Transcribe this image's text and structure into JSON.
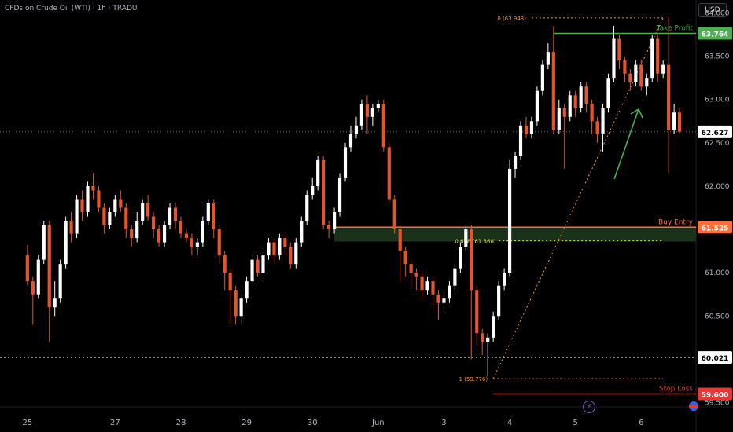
{
  "header": {
    "symbol_title": "CFDs on Crude Oil (WTI) · 1h · TRADU",
    "currency_button": "USD"
  },
  "colors": {
    "up_candle": "#ffffff",
    "down_candle": "#e4552e",
    "take_profit": "#4caf50",
    "buy_entry": "#ff6d3a",
    "stop_loss": "#e53935",
    "fib_line": "#ff8c2e",
    "fib_618": "#d4e157",
    "zone_fill": "#1e3a1e",
    "arrow": "#4caf50",
    "level_box": "#ffffff",
    "bolt_icon": "#9c6cf0"
  },
  "chart_data": {
    "type": "candlestick",
    "title": "CFDs on Crude Oil (WTI) · 1h · TRADU",
    "ylabel": "USD",
    "ylim": [
      59.45,
      64.15
    ],
    "y_ticks": [
      "64.000",
      "63.500",
      "63.000",
      "62.500",
      "62.000",
      "61.500",
      "61.000",
      "60.500",
      "59.500"
    ],
    "y_tick_values": [
      64.0,
      63.5,
      63.0,
      62.5,
      62.0,
      61.5,
      61.0,
      60.5,
      59.5
    ],
    "x_ticks": [
      "25",
      "27",
      "28",
      "29",
      "30",
      "Jun",
      "3",
      "4",
      "5",
      "6"
    ],
    "x_tick_index": [
      0,
      16,
      28,
      40,
      52,
      64,
      76,
      88,
      100,
      112
    ],
    "x_range": [
      -5,
      122
    ],
    "current_price": "62.627",
    "current_price_value": 62.627,
    "levels": [
      {
        "label": "Take Profit",
        "value": 63.764,
        "value_label": "63.764",
        "style": "take_profit"
      },
      {
        "label": "Buy Entry",
        "value": 61.525,
        "value_label": "61.525",
        "style": "buy_entry"
      },
      {
        "label": "Stop Loss",
        "value": 59.6,
        "value_label": "59.600",
        "style": "stop_loss"
      },
      {
        "label": "",
        "value": 60.021,
        "value_label": "60.021",
        "style": "dotted"
      }
    ],
    "fib": {
      "level_0_label": "0 (63.943)",
      "level_0": 63.943,
      "level_618_label": "0.618 (61.368)",
      "level_618": 61.368,
      "level_1_label": "1 (59.776)",
      "level_1": 59.776
    },
    "buy_zone": [
      61.36,
      61.525
    ],
    "candles": [
      [
        61.2,
        60.9,
        61.32,
        60.85
      ],
      [
        60.9,
        60.75,
        60.95,
        60.4
      ],
      [
        60.75,
        61.15,
        61.2,
        60.7
      ],
      [
        61.15,
        61.55,
        61.6,
        61.1
      ],
      [
        61.55,
        60.6,
        61.6,
        60.2
      ],
      [
        60.6,
        60.7,
        60.9,
        60.5
      ],
      [
        60.7,
        61.1,
        61.15,
        60.65
      ],
      [
        61.1,
        61.6,
        61.65,
        61.05
      ],
      [
        61.6,
        61.45,
        61.7,
        61.35
      ],
      [
        61.45,
        61.85,
        61.9,
        61.4
      ],
      [
        61.85,
        61.7,
        61.95,
        61.6
      ],
      [
        61.7,
        62.0,
        62.05,
        61.65
      ],
      [
        62.0,
        61.95,
        62.15,
        61.85
      ],
      [
        61.95,
        61.75,
        62.0,
        61.7
      ],
      [
        61.75,
        61.55,
        61.8,
        61.45
      ],
      [
        61.55,
        61.7,
        61.75,
        61.5
      ],
      [
        61.7,
        61.85,
        61.9,
        61.65
      ],
      [
        61.85,
        61.75,
        61.95,
        61.7
      ],
      [
        61.75,
        61.5,
        61.8,
        61.4
      ],
      [
        61.5,
        61.4,
        61.55,
        61.3
      ],
      [
        61.4,
        61.6,
        61.7,
        61.35
      ],
      [
        61.6,
        61.8,
        61.85,
        61.55
      ],
      [
        61.8,
        61.65,
        61.9,
        61.6
      ],
      [
        61.65,
        61.5,
        61.7,
        61.4
      ],
      [
        61.5,
        61.35,
        61.55,
        61.3
      ],
      [
        61.35,
        61.55,
        61.6,
        61.3
      ],
      [
        61.55,
        61.75,
        61.8,
        61.5
      ],
      [
        61.75,
        61.6,
        61.8,
        61.5
      ],
      [
        61.6,
        61.45,
        61.65,
        61.4
      ],
      [
        61.45,
        61.4,
        61.5,
        61.35
      ],
      [
        61.4,
        61.3,
        61.45,
        61.2
      ],
      [
        61.3,
        61.35,
        61.4,
        61.2
      ],
      [
        61.35,
        61.6,
        61.65,
        61.3
      ],
      [
        61.6,
        61.8,
        61.85,
        61.55
      ],
      [
        61.8,
        61.5,
        61.85,
        61.4
      ],
      [
        61.5,
        61.2,
        61.55,
        61.1
      ],
      [
        61.2,
        61.0,
        61.25,
        60.8
      ],
      [
        61.0,
        60.8,
        61.05,
        60.4
      ],
      [
        60.8,
        60.5,
        60.85,
        60.4
      ],
      [
        60.5,
        60.7,
        60.75,
        60.4
      ],
      [
        60.7,
        60.9,
        60.95,
        60.65
      ],
      [
        60.9,
        61.15,
        61.2,
        60.85
      ],
      [
        61.15,
        61.0,
        61.2,
        60.95
      ],
      [
        61.0,
        61.2,
        61.25,
        60.95
      ],
      [
        61.2,
        61.35,
        61.4,
        61.15
      ],
      [
        61.35,
        61.2,
        61.4,
        61.1
      ],
      [
        61.2,
        61.4,
        61.45,
        61.15
      ],
      [
        61.4,
        61.3,
        61.45,
        61.2
      ],
      [
        61.3,
        61.1,
        61.35,
        61.05
      ],
      [
        61.1,
        61.35,
        61.4,
        61.05
      ],
      [
        61.35,
        61.6,
        61.65,
        61.3
      ],
      [
        61.6,
        61.9,
        61.95,
        61.55
      ],
      [
        61.9,
        62.0,
        62.1,
        61.85
      ],
      [
        62.0,
        62.3,
        62.35,
        61.95
      ],
      [
        62.3,
        61.55,
        62.35,
        61.5
      ],
      [
        61.55,
        61.5,
        61.6,
        61.4
      ],
      [
        61.5,
        61.7,
        61.75,
        61.45
      ],
      [
        61.7,
        62.1,
        62.15,
        61.65
      ],
      [
        62.1,
        62.45,
        62.5,
        62.05
      ],
      [
        62.45,
        62.6,
        62.7,
        62.4
      ],
      [
        62.6,
        62.7,
        62.8,
        62.55
      ],
      [
        62.7,
        62.95,
        63.0,
        62.65
      ],
      [
        62.95,
        62.8,
        63.05,
        62.6
      ],
      [
        62.8,
        62.9,
        62.95,
        62.7
      ],
      [
        62.9,
        62.95,
        63.0,
        62.85
      ],
      [
        62.95,
        62.45,
        63.0,
        62.4
      ],
      [
        62.45,
        61.85,
        62.5,
        61.8
      ],
      [
        61.85,
        61.5,
        61.9,
        61.45
      ],
      [
        61.5,
        61.25,
        61.55,
        60.9
      ],
      [
        61.25,
        61.1,
        61.3,
        60.95
      ],
      [
        61.1,
        61.0,
        61.15,
        60.8
      ],
      [
        61.0,
        60.95,
        61.05,
        60.8
      ],
      [
        60.95,
        60.8,
        61.0,
        60.7
      ],
      [
        60.8,
        60.9,
        60.95,
        60.75
      ],
      [
        60.9,
        60.75,
        60.95,
        60.6
      ],
      [
        60.75,
        60.65,
        60.8,
        60.45
      ],
      [
        60.65,
        60.7,
        60.75,
        60.55
      ],
      [
        60.7,
        60.85,
        60.9,
        60.65
      ],
      [
        60.85,
        61.05,
        61.1,
        60.8
      ],
      [
        61.05,
        61.3,
        61.35,
        61.0
      ],
      [
        61.3,
        61.5,
        61.55,
        61.25
      ],
      [
        61.5,
        60.8,
        61.55,
        60.0
      ],
      [
        60.8,
        60.3,
        60.85,
        60.15
      ],
      [
        60.3,
        60.2,
        60.35,
        60.05
      ],
      [
        60.2,
        60.25,
        60.3,
        59.8
      ],
      [
        60.25,
        60.5,
        60.55,
        60.2
      ],
      [
        60.5,
        60.85,
        60.9,
        60.45
      ],
      [
        60.85,
        61.0,
        61.05,
        60.8
      ],
      [
        61.0,
        62.2,
        62.3,
        60.95
      ],
      [
        62.2,
        62.35,
        62.4,
        62.1
      ],
      [
        62.35,
        62.7,
        62.75,
        62.3
      ],
      [
        62.7,
        62.6,
        62.8,
        62.55
      ],
      [
        62.6,
        62.75,
        62.8,
        62.55
      ],
      [
        62.75,
        63.1,
        63.15,
        62.7
      ],
      [
        63.1,
        63.4,
        63.45,
        63.05
      ],
      [
        63.4,
        63.55,
        63.65,
        63.35
      ],
      [
        63.55,
        62.65,
        63.85,
        62.6
      ],
      [
        62.65,
        62.9,
        63.0,
        62.6
      ],
      [
        62.9,
        62.8,
        62.95,
        62.2
      ],
      [
        62.8,
        63.05,
        63.1,
        62.75
      ],
      [
        63.05,
        62.9,
        63.1,
        62.8
      ],
      [
        62.9,
        63.15,
        63.2,
        62.85
      ],
      [
        63.15,
        62.95,
        63.2,
        62.85
      ],
      [
        62.95,
        62.75,
        63.0,
        62.6
      ],
      [
        62.75,
        62.6,
        62.8,
        62.5
      ],
      [
        62.6,
        62.9,
        62.95,
        62.4
      ],
      [
        62.9,
        63.25,
        63.3,
        62.85
      ],
      [
        63.25,
        63.7,
        63.85,
        63.2
      ],
      [
        63.7,
        63.45,
        63.75,
        63.35
      ],
      [
        63.45,
        63.3,
        63.5,
        63.2
      ],
      [
        63.3,
        63.2,
        63.35,
        63.1
      ],
      [
        63.2,
        63.4,
        63.45,
        63.15
      ],
      [
        63.4,
        63.15,
        63.45,
        63.1
      ],
      [
        63.15,
        63.25,
        63.3,
        63.05
      ],
      [
        63.25,
        63.7,
        63.75,
        63.2
      ],
      [
        63.7,
        63.3,
        63.75,
        63.2
      ],
      [
        63.3,
        63.4,
        63.45,
        63.25
      ],
      [
        63.4,
        62.65,
        63.95,
        62.15
      ],
      [
        62.65,
        62.85,
        62.95,
        62.6
      ],
      [
        62.85,
        62.627,
        62.9,
        62.6
      ]
    ]
  }
}
